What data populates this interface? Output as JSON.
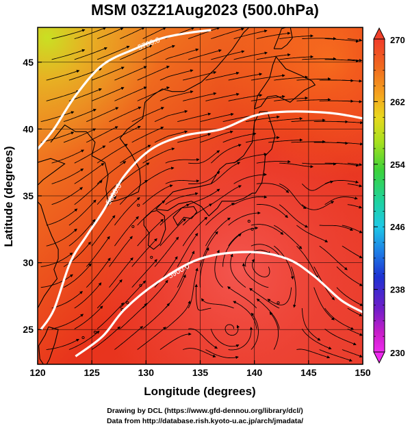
{
  "title": "MSM 03Z21Aug2023 (500.0hPa)",
  "credits": {
    "line1": "Drawing by DCL (https://www.gfd-dennou.org/library/dcl/)",
    "line2": "Data from http://database.rish.kyoto-u.ac.jp/arch/jmadata/"
  },
  "map": {
    "xlabel": "Longitude (degrees)",
    "ylabel": "Latitude  (degrees)",
    "xlim": [
      120,
      150
    ],
    "ylim": [
      22.4,
      47.6
    ],
    "xticks": [
      "120",
      "125",
      "130",
      "135",
      "140",
      "145",
      "150"
    ],
    "xtick_values": [
      120,
      125,
      130,
      135,
      140,
      145,
      150
    ],
    "yticks": [
      "25",
      "30",
      "35",
      "40",
      "45"
    ],
    "ytick_values": [
      25,
      30,
      35,
      40,
      45
    ],
    "field": "temperature (K) shaded, streamlines, geopotential height contours",
    "contours": [
      {
        "label": "5800.0",
        "points": [
          [
            120.3,
            25.0
          ],
          [
            121.5,
            26.5
          ],
          [
            123.0,
            30.0
          ],
          [
            124.5,
            32.0
          ],
          [
            126.0,
            33.8
          ],
          [
            128.0,
            36.5
          ],
          [
            130.5,
            38.5
          ],
          [
            133.5,
            39.5
          ],
          [
            137.0,
            40.0
          ],
          [
            140.0,
            41.0
          ],
          [
            143.0,
            41.3
          ],
          [
            147.0,
            41.2
          ],
          [
            150.0,
            40.8
          ]
        ]
      },
      {
        "label": "5900.0",
        "points": [
          [
            123.5,
            23.0
          ],
          [
            126.0,
            24.5
          ],
          [
            128.0,
            26.5
          ],
          [
            131.0,
            28.5
          ],
          [
            135.0,
            30.3
          ],
          [
            139.5,
            30.8
          ],
          [
            143.0,
            30.3
          ],
          [
            145.5,
            29.0
          ],
          [
            148.0,
            27.2
          ],
          [
            150.0,
            26.3
          ]
        ]
      },
      {
        "label": "5700.0",
        "points": [
          [
            120.0,
            38.5
          ],
          [
            121.5,
            40.0
          ],
          [
            123.5,
            42.5
          ],
          [
            126.0,
            44.8
          ],
          [
            129.0,
            46.0
          ],
          [
            131.5,
            46.8
          ],
          [
            134.0,
            47.2
          ],
          [
            136.0,
            47.4
          ]
        ]
      }
    ],
    "colorbar": {
      "ticks": [
        "270",
        "262",
        "254",
        "246",
        "238",
        "230"
      ],
      "values": [
        270,
        262,
        254,
        246,
        238,
        230
      ],
      "min": 230,
      "max": 270
    }
  }
}
